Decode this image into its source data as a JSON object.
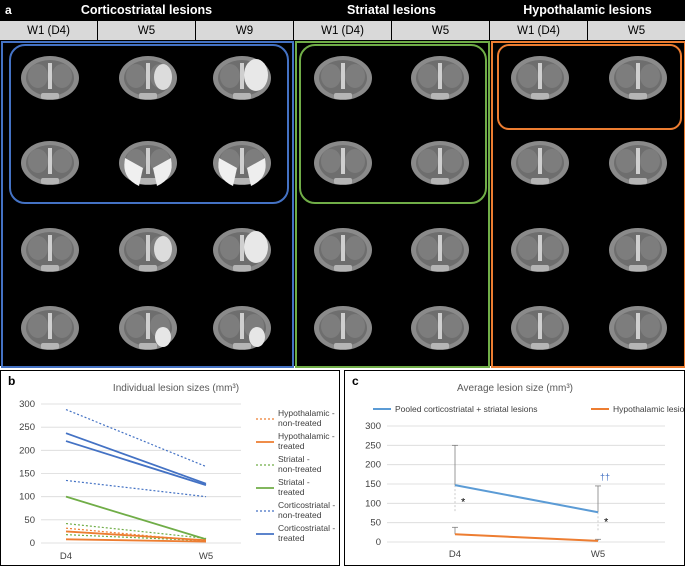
{
  "panel_a": {
    "label": "a",
    "groups": [
      {
        "title": "Corticostriatal lesions",
        "timepoints": [
          "W1 (D4)",
          "W5",
          "W9"
        ],
        "color": "#4472c4"
      },
      {
        "title": "Striatal lesions",
        "timepoints": [
          "W1 (D4)",
          "W5"
        ],
        "color": "#70ad47"
      },
      {
        "title": "Hypothalamic lesions",
        "timepoints": [
          "W1 (D4)",
          "W5"
        ],
        "color": "#ed7d31"
      }
    ]
  },
  "chart_data": [
    {
      "panel": "b",
      "type": "line",
      "title": "Individual lesion sizes (mm³)",
      "categories": [
        "D4",
        "W5"
      ],
      "ylim": [
        0,
        300
      ],
      "yticks": [
        "0",
        "50",
        "100",
        "150",
        "200",
        "250",
        "300"
      ],
      "legend": [
        {
          "name": "Hypothalamic - non-treated",
          "color": "#ed7d31",
          "dash": true
        },
        {
          "name": "Hypothalamic - treated",
          "color": "#ed7d31",
          "dash": false
        },
        {
          "name": "Striatal - non-treated",
          "color": "#70ad47",
          "dash": true
        },
        {
          "name": "Striatal - treated",
          "color": "#70ad47",
          "dash": false
        },
        {
          "name": "Corticostriatal - non-treated",
          "color": "#4472c4",
          "dash": true
        },
        {
          "name": "Corticostriatal - treated",
          "color": "#4472c4",
          "dash": false
        }
      ],
      "series": [
        {
          "group": "Corticostriatal - non-treated",
          "values": [
            288,
            165
          ],
          "color": "#4472c4",
          "dash": true
        },
        {
          "group": "Corticostriatal - non-treated",
          "values": [
            135,
            100
          ],
          "color": "#4472c4",
          "dash": true
        },
        {
          "group": "Corticostriatal - treated",
          "values": [
            237,
            128
          ],
          "color": "#4472c4",
          "dash": false
        },
        {
          "group": "Corticostriatal - treated",
          "values": [
            220,
            125
          ],
          "color": "#4472c4",
          "dash": false
        },
        {
          "group": "Striatal - treated",
          "values": [
            100,
            8
          ],
          "color": "#70ad47",
          "dash": false
        },
        {
          "group": "Striatal - non-treated",
          "values": [
            42,
            10
          ],
          "color": "#70ad47",
          "dash": true
        },
        {
          "group": "Striatal - non-treated",
          "values": [
            18,
            5
          ],
          "color": "#70ad47",
          "dash": true
        },
        {
          "group": "Hypothalamic - treated",
          "values": [
            25,
            6
          ],
          "color": "#ed7d31",
          "dash": false
        },
        {
          "group": "Hypothalamic - treated",
          "values": [
            8,
            3
          ],
          "color": "#ed7d31",
          "dash": false
        },
        {
          "group": "Hypothalamic - non-treated",
          "values": [
            32,
            4
          ],
          "color": "#ed7d31",
          "dash": true
        }
      ]
    },
    {
      "panel": "c",
      "type": "line",
      "title": "Average lesion size (mm³)",
      "categories": [
        "D4",
        "W5"
      ],
      "ylim": [
        0,
        300
      ],
      "yticks": [
        "0",
        "50",
        "100",
        "150",
        "200",
        "250",
        "300"
      ],
      "series": [
        {
          "name": "Pooled corticostriatal + striatal lesions",
          "values": [
            147,
            77
          ],
          "error": [
            103,
            68
          ],
          "color": "#5b9bd5"
        },
        {
          "name": "Hypothalamic lesions",
          "values": [
            20,
            3
          ],
          "error": [
            18,
            4
          ],
          "color": "#ed7d31"
        }
      ],
      "annotations": [
        {
          "text": "*",
          "category": "D4"
        },
        {
          "text": "*",
          "category": "W5"
        },
        {
          "text": "††",
          "category": "W5"
        }
      ]
    }
  ]
}
